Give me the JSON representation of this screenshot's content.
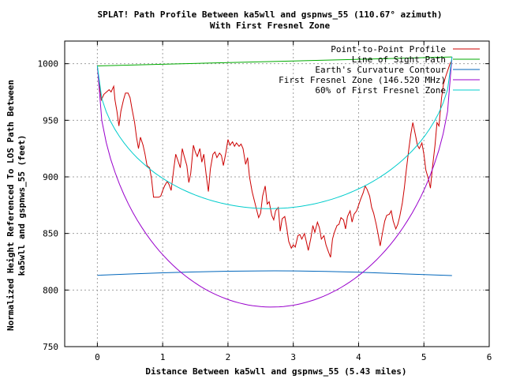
{
  "chart_data": {
    "type": "line",
    "title": "SPLAT! Path Profile Between ka5wll and gspnws_55 (110.67° azimuth)",
    "subtitle": "With First Fresnel Zone",
    "xlabel": "Distance Between ka5wll and gspnws_55 (5.43 miles)",
    "ylabel_line1": "Normalized Height Referenced To LOS Path Between",
    "ylabel_line2": "ka5wll and gspnws_55 (feet)",
    "xlim": [
      -0.5,
      6
    ],
    "ylim": [
      750,
      1020
    ],
    "xticks": [
      0,
      1,
      2,
      3,
      4,
      5,
      6
    ],
    "yticks": [
      750,
      800,
      850,
      900,
      950,
      1000
    ],
    "grid": true,
    "legend_position": "top-right",
    "series": [
      {
        "name": "Point-to-Point Profile",
        "color": "#cc0000",
        "points": [
          [
            0,
            997
          ],
          [
            0.03,
            982
          ],
          [
            0.06,
            968
          ],
          [
            0.1,
            973
          ],
          [
            0.14,
            975
          ],
          [
            0.18,
            977
          ],
          [
            0.21,
            975
          ],
          [
            0.25,
            980
          ],
          [
            0.27,
            968
          ],
          [
            0.3,
            958
          ],
          [
            0.33,
            945
          ],
          [
            0.36,
            958
          ],
          [
            0.4,
            968
          ],
          [
            0.43,
            974
          ],
          [
            0.47,
            974
          ],
          [
            0.5,
            970
          ],
          [
            0.53,
            960
          ],
          [
            0.57,
            948
          ],
          [
            0.6,
            935
          ],
          [
            0.63,
            925
          ],
          [
            0.66,
            935
          ],
          [
            0.7,
            928
          ],
          [
            0.73,
            920
          ],
          [
            0.76,
            910
          ],
          [
            0.8,
            908
          ],
          [
            0.83,
            898
          ],
          [
            0.86,
            882
          ],
          [
            0.9,
            882
          ],
          [
            0.94,
            882
          ],
          [
            0.97,
            883
          ],
          [
            1.0,
            888
          ],
          [
            1.03,
            892
          ],
          [
            1.07,
            896
          ],
          [
            1.1,
            893
          ],
          [
            1.13,
            888
          ],
          [
            1.17,
            907
          ],
          [
            1.2,
            920
          ],
          [
            1.23,
            915
          ],
          [
            1.27,
            908
          ],
          [
            1.3,
            925
          ],
          [
            1.33,
            918
          ],
          [
            1.37,
            910
          ],
          [
            1.4,
            895
          ],
          [
            1.43,
            903
          ],
          [
            1.47,
            928
          ],
          [
            1.5,
            922
          ],
          [
            1.53,
            918
          ],
          [
            1.57,
            925
          ],
          [
            1.6,
            913
          ],
          [
            1.63,
            920
          ],
          [
            1.67,
            900
          ],
          [
            1.7,
            887
          ],
          [
            1.73,
            907
          ],
          [
            1.77,
            920
          ],
          [
            1.8,
            922
          ],
          [
            1.83,
            917
          ],
          [
            1.87,
            921
          ],
          [
            1.9,
            919
          ],
          [
            1.93,
            910
          ],
          [
            1.97,
            922
          ],
          [
            2.0,
            933
          ],
          [
            2.03,
            928
          ],
          [
            2.07,
            931
          ],
          [
            2.1,
            927
          ],
          [
            2.13,
            930
          ],
          [
            2.17,
            927
          ],
          [
            2.2,
            929
          ],
          [
            2.23,
            925
          ],
          [
            2.27,
            911
          ],
          [
            2.3,
            917
          ],
          [
            2.33,
            900
          ],
          [
            2.37,
            887
          ],
          [
            2.4,
            880
          ],
          [
            2.43,
            873
          ],
          [
            2.47,
            864
          ],
          [
            2.5,
            868
          ],
          [
            2.53,
            883
          ],
          [
            2.57,
            892
          ],
          [
            2.6,
            876
          ],
          [
            2.63,
            878
          ],
          [
            2.67,
            866
          ],
          [
            2.7,
            862
          ],
          [
            2.73,
            870
          ],
          [
            2.77,
            873
          ],
          [
            2.8,
            852
          ],
          [
            2.83,
            863
          ],
          [
            2.87,
            865
          ],
          [
            2.9,
            855
          ],
          [
            2.93,
            843
          ],
          [
            2.97,
            837
          ],
          [
            3.0,
            840
          ],
          [
            3.03,
            838
          ],
          [
            3.07,
            848
          ],
          [
            3.1,
            849
          ],
          [
            3.13,
            845
          ],
          [
            3.17,
            850
          ],
          [
            3.2,
            843
          ],
          [
            3.23,
            835
          ],
          [
            3.27,
            846
          ],
          [
            3.3,
            857
          ],
          [
            3.33,
            851
          ],
          [
            3.37,
            860
          ],
          [
            3.4,
            855
          ],
          [
            3.43,
            845
          ],
          [
            3.47,
            848
          ],
          [
            3.5,
            840
          ],
          [
            3.53,
            835
          ],
          [
            3.57,
            829
          ],
          [
            3.6,
            845
          ],
          [
            3.63,
            851
          ],
          [
            3.67,
            857
          ],
          [
            3.7,
            858
          ],
          [
            3.73,
            864
          ],
          [
            3.77,
            862
          ],
          [
            3.8,
            854
          ],
          [
            3.83,
            865
          ],
          [
            3.87,
            870
          ],
          [
            3.9,
            860
          ],
          [
            3.93,
            867
          ],
          [
            3.97,
            870
          ],
          [
            4.0,
            875
          ],
          [
            4.03,
            880
          ],
          [
            4.07,
            886
          ],
          [
            4.1,
            892
          ],
          [
            4.13,
            889
          ],
          [
            4.17,
            883
          ],
          [
            4.2,
            873
          ],
          [
            4.23,
            868
          ],
          [
            4.27,
            858
          ],
          [
            4.3,
            849
          ],
          [
            4.33,
            839
          ],
          [
            4.37,
            852
          ],
          [
            4.4,
            861
          ],
          [
            4.43,
            866
          ],
          [
            4.47,
            867
          ],
          [
            4.5,
            870
          ],
          [
            4.53,
            861
          ],
          [
            4.57,
            854
          ],
          [
            4.6,
            858
          ],
          [
            4.63,
            865
          ],
          [
            4.67,
            877
          ],
          [
            4.7,
            890
          ],
          [
            4.73,
            906
          ],
          [
            4.77,
            925
          ],
          [
            4.8,
            938
          ],
          [
            4.83,
            948
          ],
          [
            4.87,
            937
          ],
          [
            4.9,
            928
          ],
          [
            4.93,
            925
          ],
          [
            4.97,
            930
          ],
          [
            5.0,
            920
          ],
          [
            5.03,
            906
          ],
          [
            5.07,
            898
          ],
          [
            5.1,
            890
          ],
          [
            5.13,
            908
          ],
          [
            5.17,
            928
          ],
          [
            5.2,
            948
          ],
          [
            5.23,
            945
          ],
          [
            5.27,
            970
          ],
          [
            5.3,
            982
          ],
          [
            5.33,
            988
          ],
          [
            5.37,
            995
          ],
          [
            5.4,
            1000
          ],
          [
            5.43,
            1003
          ]
        ]
      },
      {
        "name": "Line of Sight Path",
        "color": "#00aa00",
        "points": [
          [
            0,
            998
          ],
          [
            5.43,
            1006
          ]
        ]
      },
      {
        "name": "Earth's Curvature Contour",
        "color": "#0066bb",
        "points": [
          [
            0,
            813
          ],
          [
            0.5,
            814.2
          ],
          [
            1.0,
            815.2
          ],
          [
            1.5,
            816
          ],
          [
            2.0,
            816.6
          ],
          [
            2.5,
            816.9
          ],
          [
            2.715,
            817
          ],
          [
            3.0,
            816.9
          ],
          [
            3.5,
            816.4
          ],
          [
            4.0,
            815.7
          ],
          [
            4.5,
            814.7
          ],
          [
            5.0,
            813.6
          ],
          [
            5.43,
            812.8
          ]
        ]
      },
      {
        "name": "First Fresnel Zone (146.520 MHz)",
        "color": "#9900cc",
        "fresnel": {
          "center_x": 2.715,
          "clear": 0,
          "r_max": 217,
          "x_start": 0,
          "x_end": 5.43,
          "los_start": 998,
          "los_end": 1006
        }
      },
      {
        "name": "60% of First Fresnel Zone",
        "color": "#00cccc",
        "fresnel": {
          "center_x": 2.715,
          "clear": 0,
          "r_max": 130,
          "x_start": 0,
          "x_end": 5.43,
          "los_start": 998,
          "los_end": 1006
        }
      }
    ]
  }
}
